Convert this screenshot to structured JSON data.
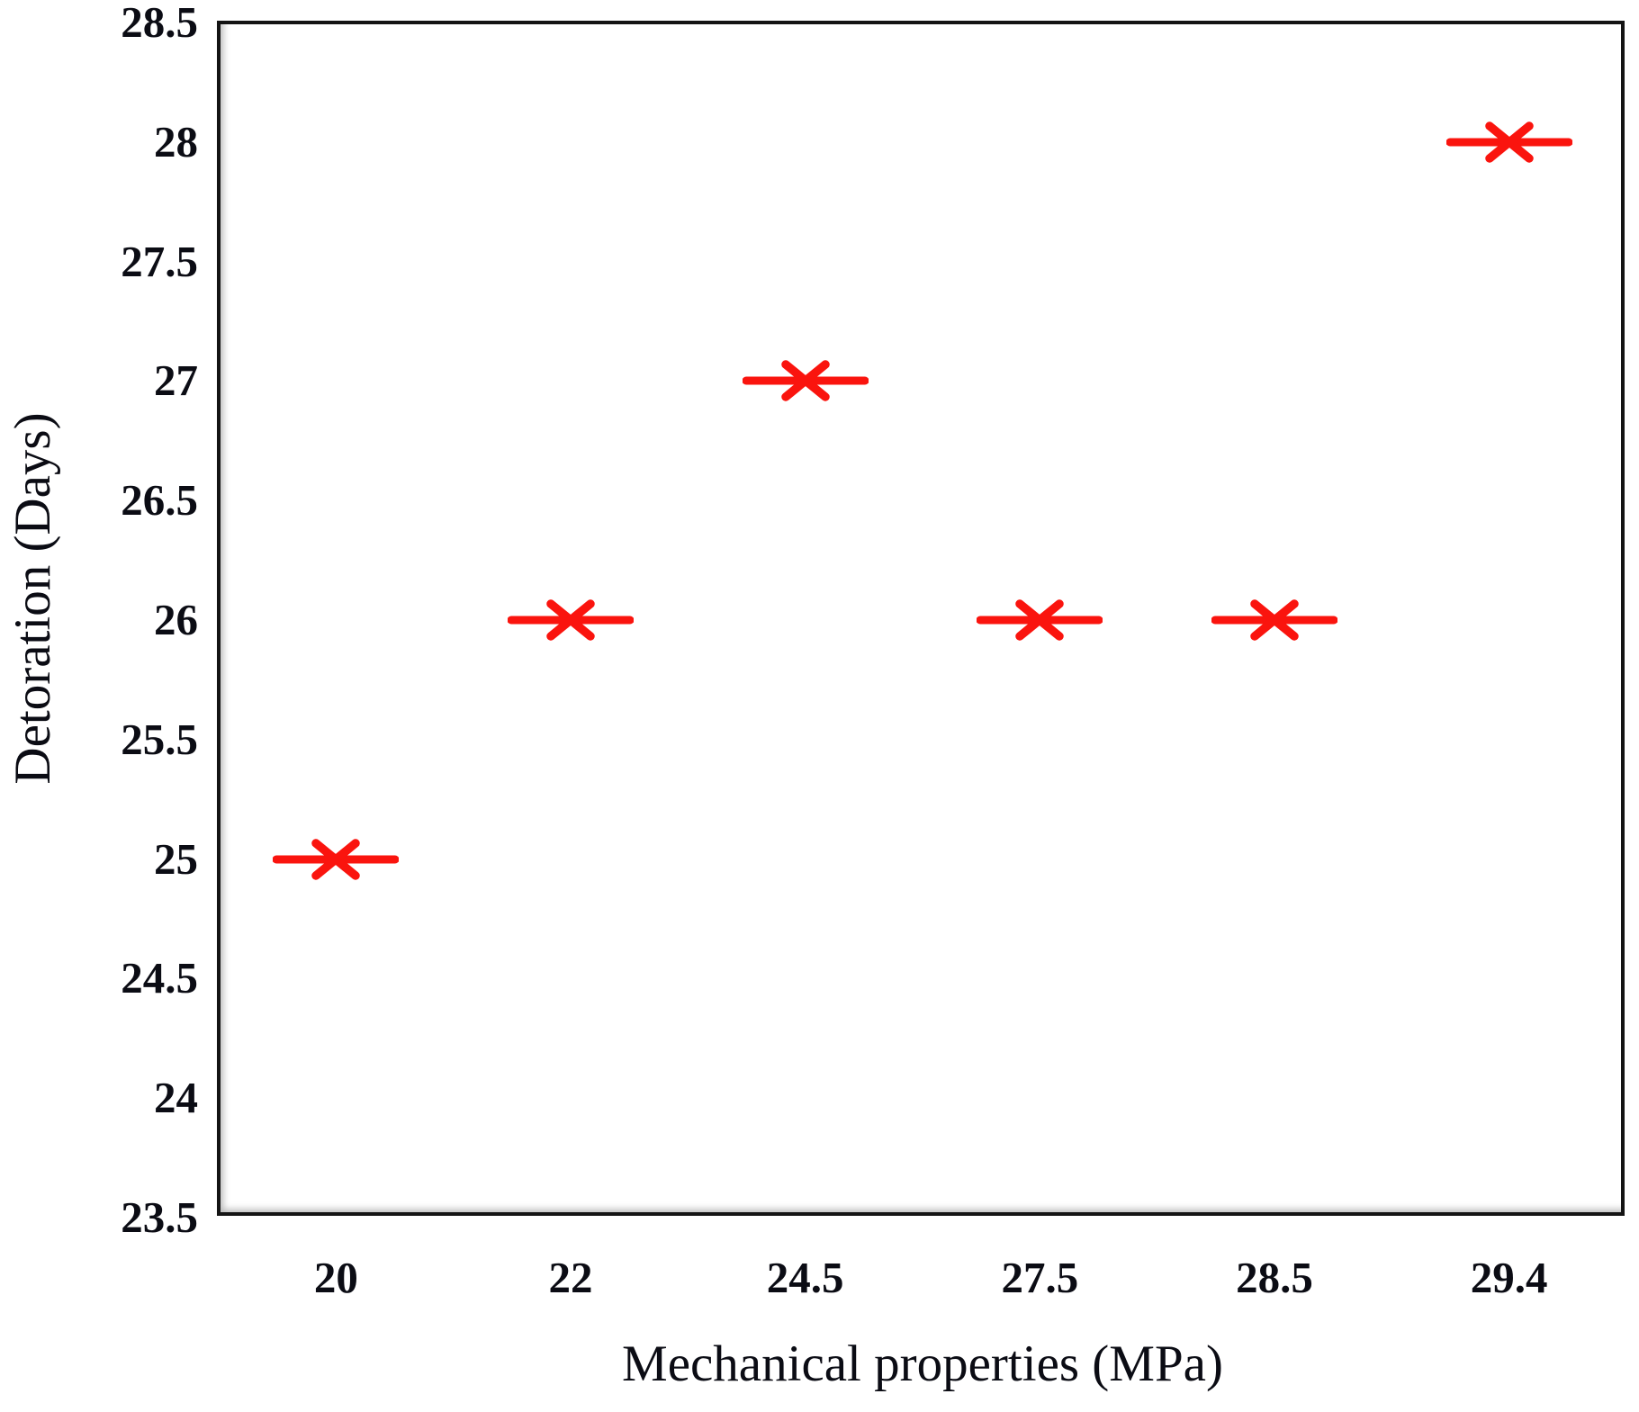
{
  "figure": {
    "background_color": "#ffffff",
    "frame_color": "#141414",
    "text_color": "#0b0c14"
  },
  "chart_data": {
    "type": "scatter",
    "title": "",
    "xlabel": "Mechanical properties (MPa)",
    "ylabel": "Detoration (Days)",
    "categories": [
      "20",
      "22",
      "24.5",
      "27.5",
      "28.5",
      "29.4"
    ],
    "values": [
      25,
      26,
      27,
      26,
      26,
      28
    ],
    "series": [
      {
        "name": "Detoration",
        "values": [
          25,
          26,
          27,
          26,
          26,
          28
        ]
      }
    ],
    "points": [
      {
        "x": "20",
        "y": 25
      },
      {
        "x": "22",
        "y": 26
      },
      {
        "x": "24.5",
        "y": 27
      },
      {
        "x": "27.5",
        "y": 26
      },
      {
        "x": "28.5",
        "y": 26
      },
      {
        "x": "29.4",
        "y": 28
      }
    ],
    "ylim": [
      23.5,
      28.5
    ],
    "ytick_step": 0.5,
    "y_ticks": [
      "23.5",
      "24",
      "24.5",
      "25",
      "25.5",
      "26",
      "26.5",
      "27",
      "27.5",
      "28",
      "28.5"
    ],
    "x_axis_type": "categorical",
    "grid": false,
    "legend_position": "none",
    "marker": {
      "shape": "x-with-horizontal-bar",
      "color": "#fa140e"
    }
  }
}
